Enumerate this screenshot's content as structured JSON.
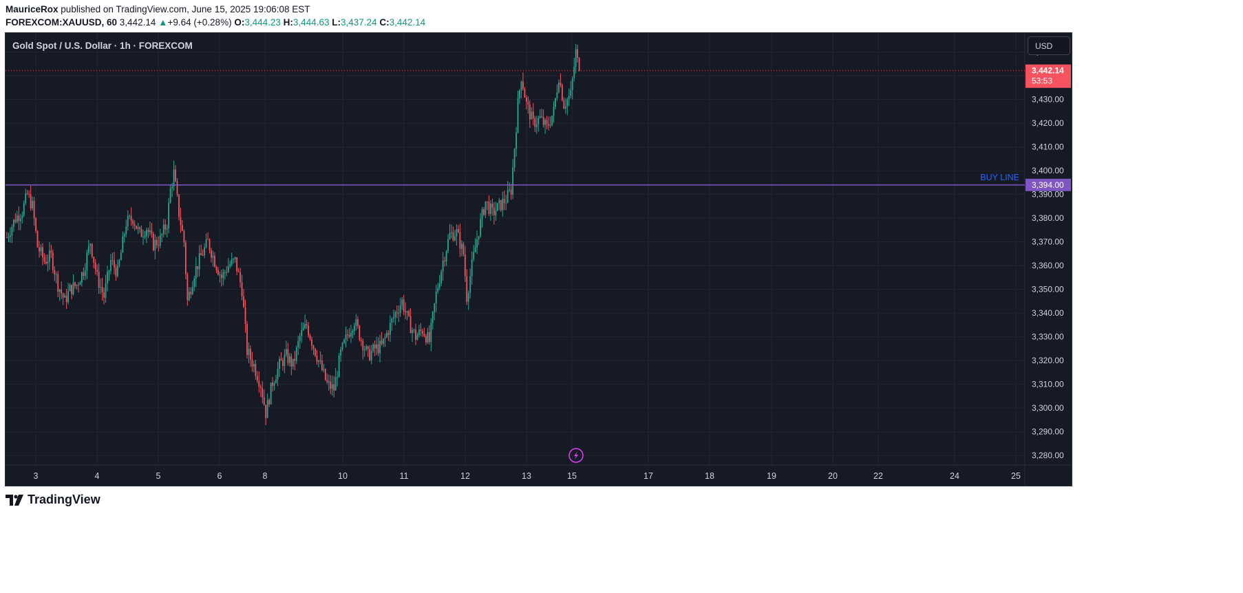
{
  "header": {
    "author": "MauriceRox",
    "published_text": "published on TradingView.com, June 15, 2025 19:06:08 EST",
    "symbol": "FOREXCOM:XAUUSD, 60",
    "last": "3,442.14",
    "change": "+9.64 (+0.28%)",
    "o_label": "O:",
    "o_value": "3,444.23",
    "h_label": "H:",
    "h_value": "3,444.63",
    "l_label": "L:",
    "l_value": "3,437.24",
    "c_label": "C:",
    "c_value": "3,442.14"
  },
  "chart_legend": "Gold Spot / U.S. Dollar · 1h · FOREXCOM",
  "currency_button": "USD",
  "brand": "TradingView",
  "colors": {
    "up": "#22ab94",
    "down": "#f7525f",
    "buy_line": "#7e57c2",
    "background": "#161a25",
    "grid": "#232632",
    "axis_text": "#d1d4dc"
  },
  "chart_data": {
    "type": "candlestick",
    "ylim": [
      3276,
      3458
    ],
    "y_ticks": [
      3280,
      3290,
      3300,
      3310,
      3320,
      3330,
      3340,
      3350,
      3360,
      3370,
      3380,
      3390,
      3400,
      3410,
      3420,
      3430,
      3440,
      3450
    ],
    "x_ticks": [
      "3",
      "4",
      "5",
      "6",
      "8",
      "10",
      "11",
      "12",
      "13",
      "15",
      "17",
      "18",
      "19",
      "20",
      "22",
      "24",
      "25"
    ],
    "price_path": [
      [
        0,
        3372
      ],
      [
        5,
        3380
      ],
      [
        9,
        3383
      ],
      [
        12,
        3390
      ],
      [
        15,
        3385
      ],
      [
        18,
        3368
      ],
      [
        22,
        3362
      ],
      [
        26,
        3364
      ],
      [
        30,
        3352
      ],
      [
        34,
        3345
      ],
      [
        37,
        3350
      ],
      [
        41,
        3352
      ],
      [
        45,
        3358
      ],
      [
        49,
        3370
      ],
      [
        53,
        3355
      ],
      [
        57,
        3347
      ],
      [
        61,
        3362
      ],
      [
        65,
        3357
      ],
      [
        70,
        3378
      ],
      [
        74,
        3380
      ],
      [
        78,
        3373
      ],
      [
        82,
        3376
      ],
      [
        86,
        3369
      ],
      [
        90,
        3371
      ],
      [
        94,
        3378
      ],
      [
        96,
        3392
      ],
      [
        98,
        3399
      ],
      [
        101,
        3382
      ],
      [
        104,
        3370
      ],
      [
        106,
        3345
      ],
      [
        110,
        3357
      ],
      [
        114,
        3364
      ],
      [
        118,
        3370
      ],
      [
        122,
        3362
      ],
      [
        126,
        3355
      ],
      [
        130,
        3360
      ],
      [
        134,
        3362
      ],
      [
        138,
        3350
      ],
      [
        141,
        3324
      ],
      [
        145,
        3318
      ],
      [
        149,
        3310
      ],
      [
        152,
        3298
      ],
      [
        156,
        3311
      ],
      [
        160,
        3318
      ],
      [
        164,
        3322
      ],
      [
        168,
        3318
      ],
      [
        172,
        3330
      ],
      [
        176,
        3335
      ],
      [
        180,
        3326
      ],
      [
        184,
        3318
      ],
      [
        188,
        3310
      ],
      [
        192,
        3308
      ],
      [
        196,
        3323
      ],
      [
        200,
        3331
      ],
      [
        204,
        3337
      ],
      [
        208,
        3329
      ],
      [
        212,
        3322
      ],
      [
        216,
        3325
      ],
      [
        220,
        3326
      ],
      [
        224,
        3333
      ],
      [
        228,
        3340
      ],
      [
        232,
        3345
      ],
      [
        236,
        3336
      ],
      [
        240,
        3330
      ],
      [
        244,
        3333
      ],
      [
        248,
        3328
      ],
      [
        252,
        3348
      ],
      [
        256,
        3362
      ],
      [
        260,
        3373
      ],
      [
        264,
        3374
      ],
      [
        268,
        3365
      ],
      [
        270,
        3347
      ],
      [
        273,
        3360
      ],
      [
        277,
        3375
      ],
      [
        281,
        3387
      ],
      [
        285,
        3382
      ],
      [
        289,
        3385
      ],
      [
        293,
        3388
      ],
      [
        296,
        3392
      ],
      [
        298,
        3410
      ],
      [
        300,
        3428
      ],
      [
        302,
        3440
      ],
      [
        305,
        3428
      ],
      [
        309,
        3420
      ],
      [
        313,
        3422
      ],
      [
        317,
        3418
      ],
      [
        321,
        3425
      ],
      [
        324,
        3440
      ],
      [
        327,
        3428
      ],
      [
        331,
        3432
      ],
      [
        334,
        3450
      ],
      [
        336,
        3442
      ]
    ],
    "price_path_units": [
      "hours since the first visible candle",
      "USD"
    ],
    "current_price": 3442.14,
    "current_price_label": "3,442.14",
    "countdown_label": "53:53",
    "buy_line": {
      "value": 3394.0,
      "label": "BUY LINE",
      "value_label": "3,394.00"
    }
  }
}
